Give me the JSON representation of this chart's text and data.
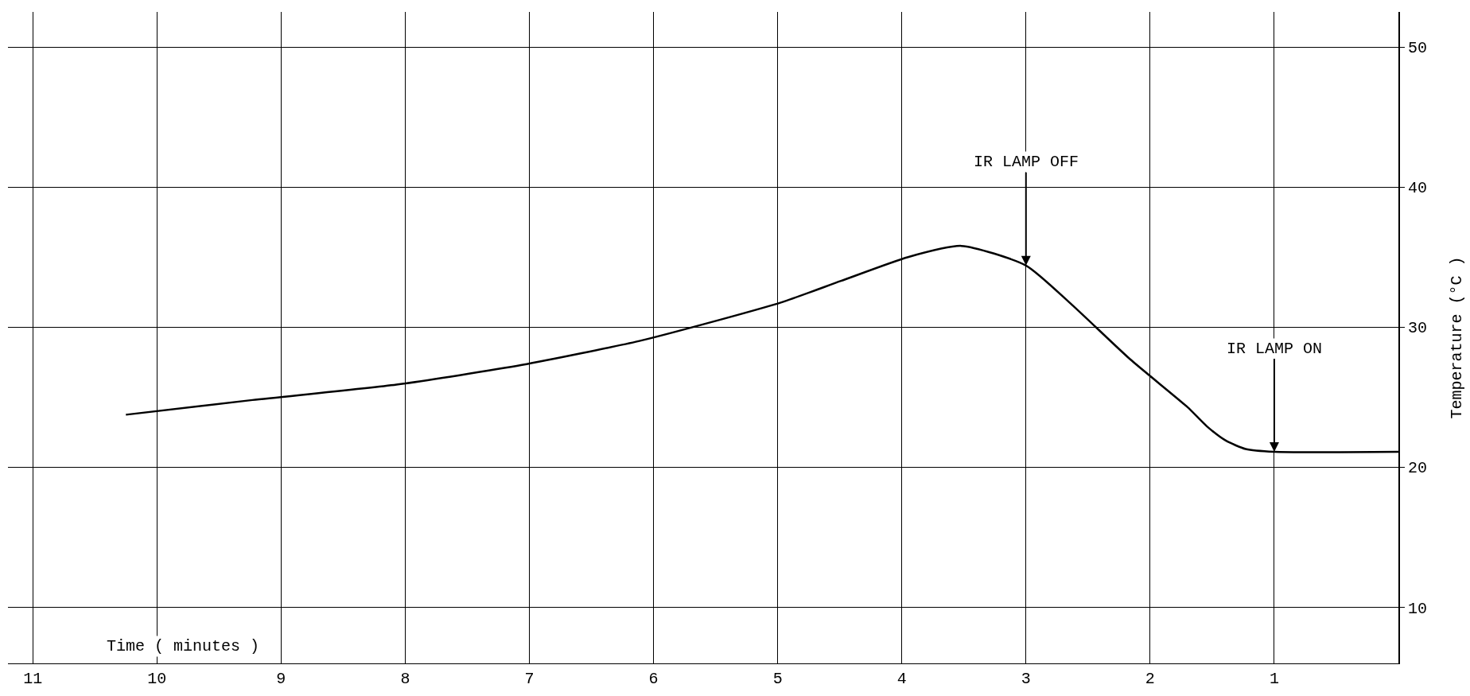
{
  "chart_data": {
    "type": "line",
    "xlabel": "Time ( minutes )",
    "ylabel": "Temperature (°C )",
    "x": [
      10.25,
      9.23,
      8.07,
      7.06,
      6.12,
      5.58,
      4.96,
      4.49,
      3.95,
      3.52,
      3.0,
      2.63,
      2.16,
      1.7,
      1.54,
      1.39,
      1.23,
      1.0,
      0.0
    ],
    "series": [
      {
        "color": "#000000",
        "values": [
          23.75,
          24.8,
          25.9,
          27.3,
          29.0,
          30.25,
          31.8,
          33.3,
          35.0,
          35.8,
          34.4,
          31.6,
          27.7,
          24.3,
          22.9,
          21.9,
          21.3,
          21.1,
          21.1
        ]
      }
    ],
    "xlim": [
      11.2,
      0
    ],
    "xticks": [
      11,
      10,
      9,
      8,
      7,
      6,
      5,
      4,
      3,
      2,
      1
    ],
    "ylim": [
      6,
      52.5
    ],
    "yticks": [
      10,
      20,
      30,
      40,
      50
    ],
    "grid": true,
    "marker": "none",
    "line_style": "solid",
    "annotations": [
      {
        "text": "IR LAMP OFF",
        "x": 3.0,
        "y": 34.4
      },
      {
        "text": "IR LAMP ON",
        "x": 1.0,
        "y": 21.1
      }
    ]
  }
}
